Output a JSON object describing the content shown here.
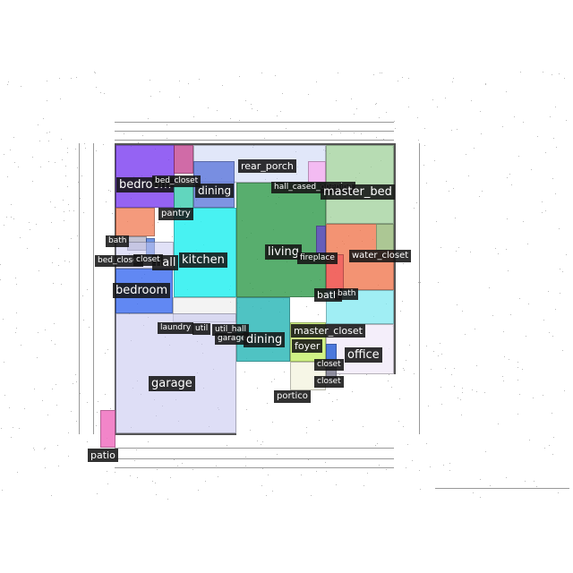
{
  "labels": {
    "bedroom_top": "bedroom",
    "bed_closet_top": "bed_closet",
    "dining_small": "dining",
    "rear_porch": "rear_porch",
    "hall_cased_opening": "hall_cased_opening",
    "master_bed": "master_bed",
    "pantry": "pantry",
    "bath_left": "bath",
    "bed_closet_left": "bed_closet",
    "closet_left": "closet",
    "hall_left": "hall",
    "kitchen": "kitchen",
    "living": "living",
    "fireplace": "fireplace",
    "water_closet": "water_closet",
    "bedroom_bottom": "bedroom",
    "bath_right_a": "bath",
    "bath_right_b": "bath",
    "laundry": "laundry",
    "util_a": "util",
    "util_hall": "util_hall",
    "garage_small": "garage",
    "dining_big": "dining",
    "master_closet": "master_closet",
    "foyer": "foyer",
    "office": "office",
    "closet_a": "closet",
    "closet_b": "closet",
    "garage": "garage",
    "portico": "portico",
    "patio": "patio"
  },
  "colors": {
    "bedroom": "#7a3cf0",
    "bed_closet": "#c03a8a",
    "dining_small": "#5470d8",
    "rear_porch": "#c8d4f4",
    "master_bed": "#9fd09a",
    "pantry": "#2cc8a8",
    "kitchen": "#28f0f0",
    "living": "#2e9a4a",
    "bath": "#f07850",
    "fireplace": "#6a50c8",
    "water_closet": "#f06060",
    "bedroom_bottom": "#3a6af0",
    "bath_right": "#80e8f0",
    "laundry": "#f0f0f0",
    "dining_big": "#30b8b8",
    "master_closet": "#c8f070",
    "foyer": "#f0f0c8",
    "office": "#f0e8f8",
    "closet": "#3a6ad8",
    "garage": "#c8c8f0",
    "portico": "#f4f4e0",
    "patio": "#f070c0",
    "hall_cased_opening": "#f8b0f0"
  }
}
